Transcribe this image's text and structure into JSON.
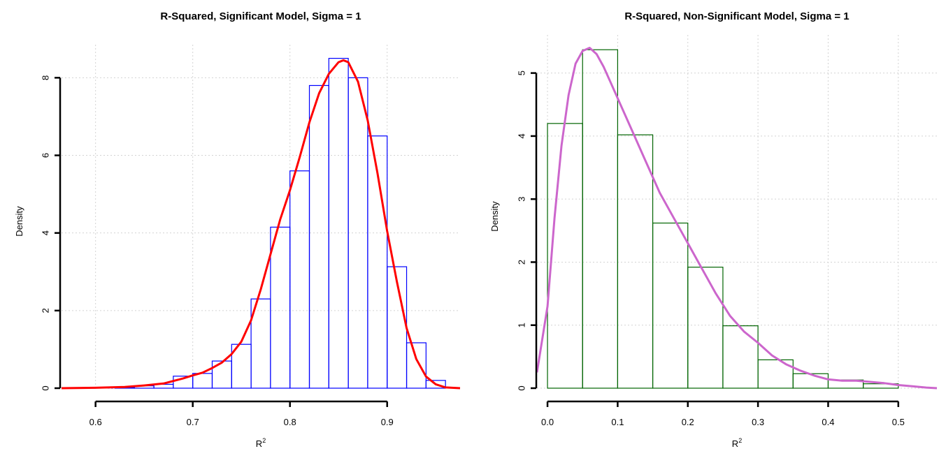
{
  "chart_data": [
    {
      "type": "bar",
      "title": "R-Squared, Significant Model, Sigma = 1",
      "xlabel": "R",
      "xlabel_sup": "2",
      "ylabel": "Density",
      "xlim": [
        0.565,
        0.975
      ],
      "ylim": [
        0,
        8.6
      ],
      "xticks": [
        "0.6",
        "0.7",
        "0.8",
        "0.9"
      ],
      "yticks": [
        "0",
        "2",
        "4",
        "6",
        "8"
      ],
      "grid": true,
      "bin_edges": [
        0.58,
        0.6,
        0.62,
        0.64,
        0.66,
        0.68,
        0.7,
        0.72,
        0.74,
        0.76,
        0.78,
        0.8,
        0.82,
        0.84,
        0.86,
        0.88,
        0.9,
        0.92,
        0.94,
        0.96
      ],
      "values": [
        0.005,
        0.0,
        0.02,
        0.06,
        0.1,
        0.31,
        0.38,
        0.7,
        1.13,
        2.3,
        4.15,
        5.6,
        7.8,
        8.5,
        8.0,
        6.5,
        3.13,
        1.17,
        0.2
      ],
      "bar_color": "#0000ff",
      "density": {
        "x": [
          0.565,
          0.6,
          0.63,
          0.65,
          0.67,
          0.69,
          0.7,
          0.71,
          0.72,
          0.73,
          0.74,
          0.75,
          0.76,
          0.77,
          0.78,
          0.79,
          0.8,
          0.81,
          0.82,
          0.83,
          0.84,
          0.85,
          0.855,
          0.86,
          0.87,
          0.88,
          0.89,
          0.9,
          0.91,
          0.92,
          0.93,
          0.94,
          0.95,
          0.96,
          0.975
        ],
        "y": [
          0.0,
          0.01,
          0.03,
          0.07,
          0.12,
          0.25,
          0.33,
          0.4,
          0.52,
          0.66,
          0.88,
          1.2,
          1.75,
          2.55,
          3.45,
          4.35,
          5.1,
          5.95,
          6.85,
          7.6,
          8.1,
          8.4,
          8.45,
          8.4,
          7.9,
          6.9,
          5.55,
          4.05,
          2.75,
          1.55,
          0.75,
          0.3,
          0.1,
          0.02,
          0.0
        ],
        "color": "#ff0000"
      }
    },
    {
      "type": "bar",
      "title": "R-Squared, Non-Significant Model, Sigma = 1",
      "xlabel": "R",
      "xlabel_sup": "2",
      "ylabel": "Density",
      "xlim": [
        -0.015,
        0.555
      ],
      "ylim": [
        0,
        5.45
      ],
      "xticks": [
        "0.0",
        "0.1",
        "0.2",
        "0.3",
        "0.4",
        "0.5"
      ],
      "yticks": [
        "0",
        "1",
        "2",
        "3",
        "4",
        "5"
      ],
      "grid": true,
      "bin_edges": [
        0.0,
        0.05,
        0.1,
        0.15,
        0.2,
        0.25,
        0.3,
        0.35,
        0.4,
        0.45,
        0.5
      ],
      "values": [
        4.2,
        5.37,
        4.02,
        2.62,
        1.92,
        0.99,
        0.45,
        0.23,
        0.13,
        0.07
      ],
      "bar_color": "#006400",
      "density": {
        "x": [
          -0.015,
          0.0,
          0.01,
          0.02,
          0.03,
          0.04,
          0.05,
          0.06,
          0.07,
          0.08,
          0.09,
          0.1,
          0.12,
          0.14,
          0.16,
          0.18,
          0.2,
          0.22,
          0.24,
          0.26,
          0.28,
          0.3,
          0.32,
          0.34,
          0.36,
          0.38,
          0.4,
          0.42,
          0.44,
          0.46,
          0.48,
          0.5,
          0.52,
          0.54,
          0.555
        ],
        "y": [
          0.25,
          1.3,
          2.7,
          3.85,
          4.65,
          5.15,
          5.35,
          5.4,
          5.3,
          5.1,
          4.85,
          4.6,
          4.1,
          3.6,
          3.1,
          2.7,
          2.3,
          1.9,
          1.5,
          1.15,
          0.9,
          0.72,
          0.52,
          0.38,
          0.28,
          0.2,
          0.14,
          0.12,
          0.12,
          0.1,
          0.08,
          0.05,
          0.03,
          0.01,
          0.0
        ],
        "color": "#cc66cc"
      }
    }
  ]
}
